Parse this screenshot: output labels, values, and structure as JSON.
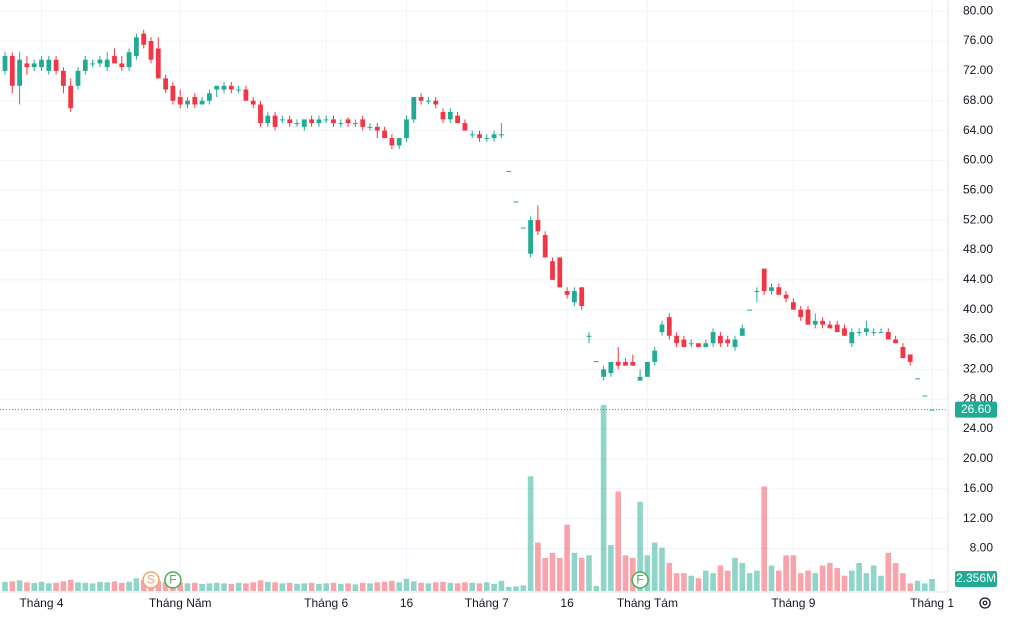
{
  "chart_data": {
    "type": "candlestick",
    "up_color": "#22ab94",
    "down_color": "#f23645",
    "ylim": [
      2.3,
      81.5
    ],
    "yticks": [
      {
        "value": 80,
        "label": "80.00"
      },
      {
        "value": 76,
        "label": "76.00"
      },
      {
        "value": 72,
        "label": "72.00"
      },
      {
        "value": 68,
        "label": "68.00"
      },
      {
        "value": 64,
        "label": "64.00"
      },
      {
        "value": 60,
        "label": "60.00"
      },
      {
        "value": 56,
        "label": "56.00"
      },
      {
        "value": 52,
        "label": "52.00"
      },
      {
        "value": 48,
        "label": "48.00"
      },
      {
        "value": 44,
        "label": "44.00"
      },
      {
        "value": 40,
        "label": "40.00"
      },
      {
        "value": 36,
        "label": "36.00"
      },
      {
        "value": 32,
        "label": "32.00"
      },
      {
        "value": 28,
        "label": "28.00"
      },
      {
        "value": 24,
        "label": "24.00"
      },
      {
        "value": 20,
        "label": "20.00"
      },
      {
        "value": 16,
        "label": "16.00"
      },
      {
        "value": 12,
        "label": "12.00"
      },
      {
        "value": 8,
        "label": "8.00"
      }
    ],
    "xticks": [
      {
        "value": 5,
        "label": "Tháng 4"
      },
      {
        "value": 24,
        "label": "Tháng Năm"
      },
      {
        "value": 44,
        "label": "Tháng 6"
      },
      {
        "value": 55,
        "label": "16"
      },
      {
        "value": 66,
        "label": "Tháng 7"
      },
      {
        "value": 77,
        "label": "16"
      },
      {
        "value": 88,
        "label": "Tháng Tám"
      },
      {
        "value": 108,
        "label": "Tháng 9"
      },
      {
        "value": 127,
        "label": "Tháng 1"
      }
    ],
    "grid": true,
    "last_price": {
      "value": 26.6,
      "label": "26.60"
    },
    "ohlc": [
      [
        72,
        74.5,
        71.5,
        74
      ],
      [
        74,
        74.5,
        69,
        70
      ],
      [
        70,
        74.5,
        67.5,
        73.5
      ],
      [
        73,
        74,
        71.5,
        72.5
      ],
      [
        72.5,
        73.5,
        72,
        73
      ],
      [
        72.5,
        74,
        72,
        73.5
      ],
      [
        72,
        74,
        71.5,
        73.5
      ],
      [
        73.5,
        74,
        71.5,
        72
      ],
      [
        72,
        72.5,
        69,
        70
      ],
      [
        70,
        71,
        66.5,
        67
      ],
      [
        70,
        72.5,
        69.5,
        72
      ],
      [
        72,
        74,
        71.5,
        73.5
      ],
      [
        73,
        73.5,
        72.5,
        73
      ],
      [
        73,
        74,
        72.5,
        73.5
      ],
      [
        72.5,
        74.5,
        72,
        73.5
      ],
      [
        74,
        75,
        73,
        73
      ],
      [
        73,
        74,
        72,
        72.5
      ],
      [
        72.5,
        75,
        72,
        74.5
      ],
      [
        74,
        77,
        73.5,
        76.5
      ],
      [
        77,
        77.5,
        75,
        75.5
      ],
      [
        76,
        76.5,
        73,
        73.5
      ],
      [
        75,
        76.5,
        71,
        71
      ],
      [
        71,
        71.5,
        69,
        69.5
      ],
      [
        70,
        70.5,
        67.5,
        68
      ],
      [
        68.5,
        69.5,
        67,
        67.5
      ],
      [
        67.5,
        68.5,
        67,
        68
      ],
      [
        68.5,
        69,
        67,
        67.5
      ],
      [
        67.5,
        68.5,
        67.5,
        68
      ],
      [
        68,
        69.5,
        67.5,
        69
      ],
      [
        69.5,
        70,
        68.5,
        70
      ],
      [
        69.5,
        70.5,
        69,
        70
      ],
      [
        70,
        70.5,
        69,
        69.5
      ],
      [
        69.5,
        70,
        69,
        69.5
      ],
      [
        69.5,
        70,
        68,
        68
      ],
      [
        68,
        68.5,
        67,
        67.5
      ],
      [
        67.5,
        68,
        64.5,
        65
      ],
      [
        65,
        66.5,
        64.5,
        66
      ],
      [
        66,
        66.5,
        64,
        64.5
      ],
      [
        65.5,
        66,
        65,
        65.5
      ],
      [
        65.5,
        66,
        64.5,
        65
      ],
      [
        65,
        65.5,
        64.5,
        65
      ],
      [
        64.5,
        65.5,
        64,
        65.5
      ],
      [
        65.5,
        66,
        64.5,
        65
      ],
      [
        65,
        66,
        64.5,
        65.5
      ],
      [
        65.5,
        66,
        65,
        65.5
      ],
      [
        65.5,
        66,
        64.5,
        65
      ],
      [
        65,
        65.5,
        64.5,
        65
      ],
      [
        65.5,
        65.8,
        64.5,
        65
      ],
      [
        65,
        65.5,
        64.5,
        65
      ],
      [
        65.5,
        66,
        64,
        64.5
      ],
      [
        64.5,
        65,
        64,
        64.5
      ],
      [
        64.5,
        65,
        63,
        64
      ],
      [
        64,
        64.5,
        63,
        63
      ],
      [
        63,
        63.5,
        61.5,
        62
      ],
      [
        62,
        63,
        61.5,
        63
      ],
      [
        63,
        66,
        62.5,
        65.5
      ],
      [
        65.5,
        68.5,
        65,
        68.5
      ],
      [
        68.5,
        69,
        67.5,
        68
      ],
      [
        68,
        68.5,
        67.5,
        68
      ],
      [
        68,
        68.5,
        67,
        67.5
      ],
      [
        66.5,
        67,
        65,
        65.5
      ],
      [
        65.5,
        67,
        65,
        66.5
      ],
      [
        66,
        66.5,
        65,
        65
      ],
      [
        65,
        65.5,
        64,
        64
      ],
      [
        63.5,
        64,
        63,
        63.5
      ],
      [
        63.5,
        64,
        62.5,
        63
      ],
      [
        63,
        63.5,
        62.5,
        63
      ],
      [
        63,
        64,
        62.5,
        63.5
      ],
      [
        63.5,
        65,
        63,
        63.5
      ],
      [
        58.6,
        58.6,
        58.6,
        58.6
      ],
      [
        54.5,
        54.5,
        54.5,
        54.5
      ],
      [
        51,
        51,
        51,
        51
      ],
      [
        47.5,
        52.5,
        47,
        52
      ],
      [
        52,
        54,
        50,
        50.5
      ],
      [
        50,
        50.5,
        47,
        47
      ],
      [
        46.5,
        47,
        44,
        44
      ],
      [
        47,
        47,
        43,
        43
      ],
      [
        42.5,
        43,
        41.5,
        42
      ],
      [
        41,
        43,
        40.5,
        42.5
      ],
      [
        43,
        43,
        40,
        40.5
      ],
      [
        36.5,
        37,
        35.5,
        36.5
      ],
      [
        33.1,
        33.1,
        33.1,
        33.1
      ],
      [
        31,
        32.5,
        30.5,
        32
      ],
      [
        31.5,
        33,
        31,
        33
      ],
      [
        33,
        35,
        32,
        32.5
      ],
      [
        33,
        33.5,
        32.5,
        32.5
      ],
      [
        33,
        34,
        32.5,
        32.5
      ],
      [
        30.5,
        32,
        30.5,
        31
      ],
      [
        31,
        33,
        31,
        33
      ],
      [
        33,
        35,
        32.5,
        34.5
      ],
      [
        37,
        38.5,
        36.5,
        38
      ],
      [
        39,
        39.5,
        36,
        36.5
      ],
      [
        36.5,
        37,
        35,
        35.5
      ],
      [
        36,
        36.5,
        35,
        35
      ],
      [
        35.5,
        36,
        35,
        35.5
      ],
      [
        35.5,
        35.5,
        35,
        35
      ],
      [
        35,
        36,
        35,
        35.5
      ],
      [
        35.5,
        37.5,
        35,
        37
      ],
      [
        36.5,
        37,
        35,
        35.5
      ],
      [
        36,
        36.5,
        35,
        35.5
      ],
      [
        35,
        36.5,
        34.5,
        36
      ],
      [
        36.5,
        38,
        36.5,
        37.5
      ],
      [
        40,
        40,
        40,
        40
      ],
      [
        42.5,
        43,
        41,
        42.5
      ],
      [
        45.5,
        45.5,
        42,
        42.5
      ],
      [
        42.5,
        43.5,
        42,
        43
      ],
      [
        43,
        43.5,
        42,
        42
      ],
      [
        42,
        42.5,
        41,
        41.5
      ],
      [
        41,
        41.5,
        40,
        40
      ],
      [
        40,
        40.5,
        38.5,
        39
      ],
      [
        40,
        40.5,
        38,
        38
      ],
      [
        38,
        39.5,
        37.5,
        38.5
      ],
      [
        38.5,
        39,
        37.5,
        38
      ],
      [
        38,
        38.5,
        37.5,
        37.5
      ],
      [
        38,
        38.5,
        37,
        37
      ],
      [
        37.5,
        38,
        36.5,
        36.5
      ],
      [
        35.5,
        37.5,
        35,
        37
      ],
      [
        37,
        37.5,
        36.5,
        37
      ],
      [
        37,
        38.5,
        36.5,
        37.5
      ],
      [
        37,
        37.5,
        36.5,
        37
      ],
      [
        37,
        37.5,
        37,
        37
      ],
      [
        37,
        37.5,
        36,
        36
      ],
      [
        36,
        36.5,
        35.5,
        35.5
      ],
      [
        35,
        35.5,
        33.5,
        33.5
      ],
      [
        34,
        34,
        32.5,
        33
      ],
      [
        30.8,
        30.8,
        30.8,
        30.8
      ],
      [
        28.5,
        28.5,
        28.5,
        28.5
      ],
      [
        26.6,
        26.6,
        26.6,
        26.6
      ]
    ],
    "volume": {
      "values": [
        1.8,
        1.9,
        2.1,
        1.7,
        1.6,
        1.8,
        1.5,
        1.6,
        1.9,
        2.2,
        1.7,
        1.6,
        1.5,
        1.8,
        1.7,
        1.9,
        1.6,
        1.8,
        2.5,
        2.2,
        1.9,
        2.0,
        1.8,
        1.6,
        1.7,
        1.5,
        1.6,
        1.4,
        1.5,
        1.6,
        1.5,
        1.4,
        1.6,
        1.5,
        1.7,
        2.1,
        1.8,
        1.7,
        1.5,
        1.6,
        1.4,
        1.5,
        1.6,
        1.4,
        1.5,
        1.6,
        1.4,
        1.5,
        1.3,
        1.6,
        1.5,
        1.7,
        1.8,
        2.0,
        1.7,
        2.4,
        1.9,
        1.6,
        1.5,
        1.7,
        1.8,
        1.6,
        1.5,
        1.7,
        1.6,
        1.5,
        1.7,
        1.4,
        2.0,
        0.8,
        0.9,
        1.1,
        22.5,
        9.5,
        6.5,
        7.5,
        6.5,
        13,
        7.5,
        6.5,
        7,
        1,
        36.5,
        9,
        19.5,
        7,
        6.5,
        17.5,
        7,
        9.5,
        8.5,
        5.5,
        3.5,
        3.5,
        3,
        2.5,
        4,
        3.5,
        5,
        4,
        6.5,
        5.5,
        3.5,
        4,
        20.5,
        5,
        4,
        7,
        7,
        3.5,
        4,
        3.5,
        5,
        5.5,
        4.5,
        3,
        4,
        5.5,
        3.5,
        5,
        3,
        7.5,
        5.5,
        3.5,
        1.5,
        2,
        1.5,
        2.356
      ],
      "last_value_label": "2.356M"
    },
    "events": [
      {
        "index": 20,
        "label": "S",
        "color": "#f7a062"
      },
      {
        "index": 23,
        "label": "F",
        "color": "#4caf50"
      },
      {
        "index": 87,
        "label": "F",
        "color": "#4caf50"
      }
    ]
  }
}
